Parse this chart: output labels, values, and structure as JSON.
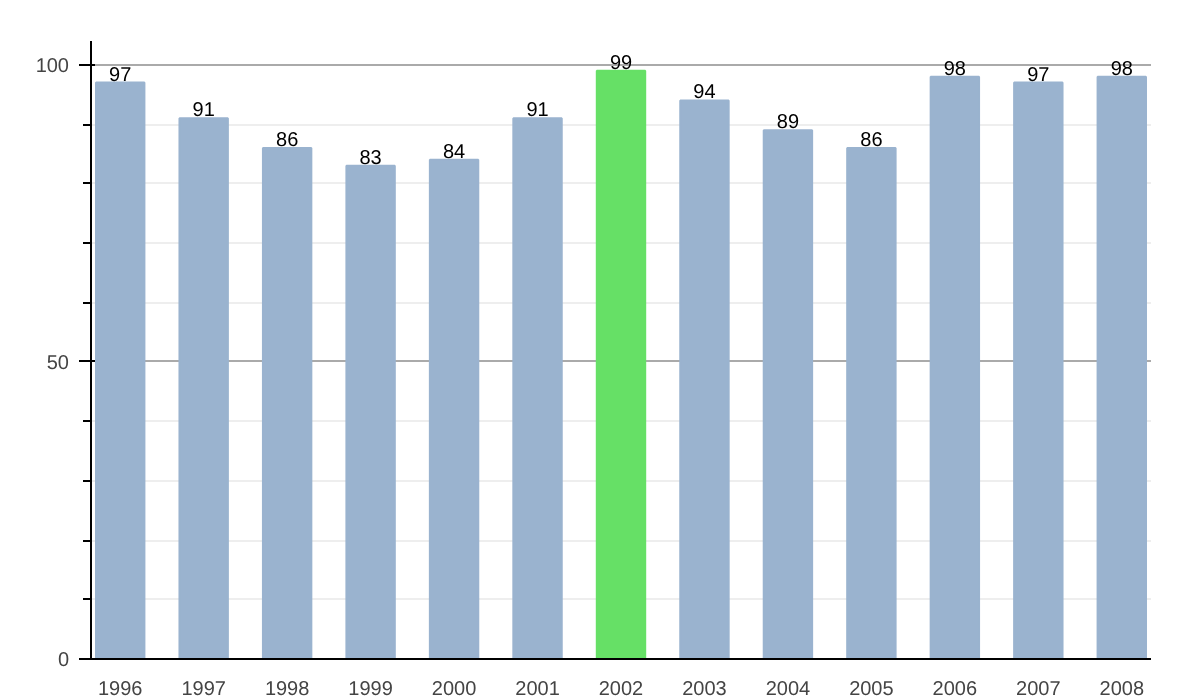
{
  "chart_data": {
    "type": "bar",
    "categories": [
      "1996",
      "1997",
      "1998",
      "1999",
      "2000",
      "2001",
      "2002",
      "2003",
      "2004",
      "2005",
      "2006",
      "2007",
      "2008"
    ],
    "values": [
      97,
      91,
      86,
      83,
      84,
      91,
      99,
      94,
      89,
      86,
      98,
      97,
      98
    ],
    "colors": [
      "#9ab3cf",
      "#9ab3cf",
      "#9ab3cf",
      "#9ab3cf",
      "#9ab3cf",
      "#9ab3cf",
      "#66e066",
      "#9ab3cf",
      "#9ab3cf",
      "#9ab3cf",
      "#9ab3cf",
      "#9ab3cf",
      "#9ab3cf"
    ],
    "ylim": [
      0,
      104
    ],
    "yticks": [
      0,
      50,
      100
    ],
    "grid": "y",
    "data_labels": true
  }
}
